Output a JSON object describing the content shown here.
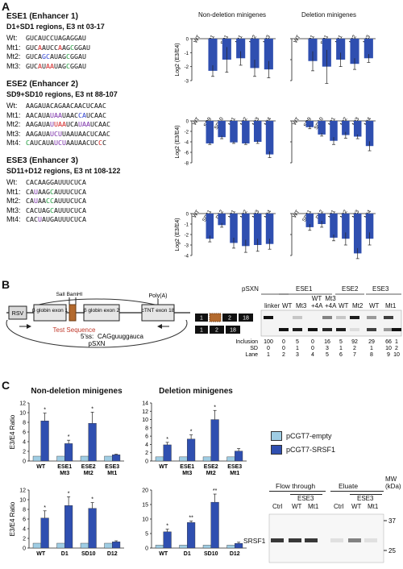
{
  "colors": {
    "dark_bar": "#2f4fb0",
    "light_bar": "#9fcde4",
    "red": "#d12020",
    "blue": "#2b3fd0",
    "green": "#1c9a3a",
    "purple": "#7a2fa8",
    "exon_fill": "#e6e6e6",
    "test_seq": "#b36a2e"
  },
  "panelA": {
    "letter": "A",
    "col_titles": [
      "Non-deletion minigenes",
      "Deletion minigenes"
    ],
    "ylabel": "Log2 (E3/E4)",
    "ese1": {
      "title": "ESE1 (Enhancer 1)",
      "sub": "D1+SD1 regions, E3 nt 03-17",
      "rows": [
        {
          "label": "Wt:",
          "segs": [
            {
              "t": "GUCAUCCUAGAGGAU",
              "c": ""
            }
          ]
        },
        {
          "label": "Mt1:",
          "segs": [
            {
              "t": "GUC",
              "c": ""
            },
            {
              "t": "A",
              "c": "red"
            },
            {
              "t": "AUCC",
              "c": ""
            },
            {
              "t": "A",
              "c": "red"
            },
            {
              "t": "AG",
              "c": ""
            },
            {
              "t": "C",
              "c": "green"
            },
            {
              "t": "GGAU",
              "c": ""
            }
          ]
        },
        {
          "label": "Mt2:",
          "segs": [
            {
              "t": "GUCA",
              "c": ""
            },
            {
              "t": "GC",
              "c": "blue"
            },
            {
              "t": "AUAG",
              "c": ""
            },
            {
              "t": "C",
              "c": "green"
            },
            {
              "t": "GGAU",
              "c": ""
            }
          ]
        },
        {
          "label": "Mt3:",
          "segs": [
            {
              "t": "GUC",
              "c": ""
            },
            {
              "t": "A",
              "c": "red"
            },
            {
              "t": "U",
              "c": ""
            },
            {
              "t": "AA",
              "c": "red"
            },
            {
              "t": "UAG",
              "c": ""
            },
            {
              "t": "C",
              "c": "green"
            },
            {
              "t": "GGAU",
              "c": ""
            }
          ]
        }
      ]
    },
    "ese2": {
      "title": "ESE2 (Enhancer 2)",
      "sub": "SD9+SD10 regions, E3 nt 88-107",
      "rows": [
        {
          "label": "Wt:",
          "segs": [
            {
              "t": "AAGAUACAGAACAACUCAAC",
              "c": ""
            }
          ]
        },
        {
          "label": "Mt1:",
          "segs": [
            {
              "t": "AACAUA",
              "c": ""
            },
            {
              "t": "UAA",
              "c": "purple"
            },
            {
              "t": "UAAC",
              "c": ""
            },
            {
              "t": "CA",
              "c": "blue"
            },
            {
              "t": "UCAAC",
              "c": ""
            }
          ]
        },
        {
          "label": "Mt2:",
          "segs": [
            {
              "t": "AAGAUA",
              "c": ""
            },
            {
              "t": "U",
              "c": "purple"
            },
            {
              "t": "UAA",
              "c": "red"
            },
            {
              "t": "UCA",
              "c": ""
            },
            {
              "t": "UAA",
              "c": "purple"
            },
            {
              "t": "UCAAC",
              "c": ""
            }
          ]
        },
        {
          "label": "Mt3:",
          "segs": [
            {
              "t": "AAGAUA",
              "c": ""
            },
            {
              "t": "UCU",
              "c": "purple"
            },
            {
              "t": "UAAUAACUCAAC",
              "c": ""
            }
          ]
        },
        {
          "label": "Mt4:",
          "segs": [
            {
              "t": "C",
              "c": "green"
            },
            {
              "t": "AUCAUA",
              "c": ""
            },
            {
              "t": "UCU",
              "c": "purple"
            },
            {
              "t": "AAUAACUC",
              "c": ""
            },
            {
              "t": "C",
              "c": "red"
            },
            {
              "t": "C",
              "c": ""
            }
          ]
        }
      ]
    },
    "ese3": {
      "title": "ESE3 (Enhancer 3)",
      "sub": "SD11+D12 regions, E3 nt 108-122",
      "rows": [
        {
          "label": "Wt:",
          "segs": [
            {
              "t": "CACAAGGAUUUCUCA",
              "c": ""
            }
          ]
        },
        {
          "label": "Mt1:",
          "segs": [
            {
              "t": "CA",
              "c": ""
            },
            {
              "t": "U",
              "c": "purple"
            },
            {
              "t": "AAG",
              "c": ""
            },
            {
              "t": "C",
              "c": "green"
            },
            {
              "t": "AUUUCUCA",
              "c": ""
            }
          ]
        },
        {
          "label": "Mt2:",
          "segs": [
            {
              "t": "CA",
              "c": ""
            },
            {
              "t": "U",
              "c": "purple"
            },
            {
              "t": "AA",
              "c": ""
            },
            {
              "t": "CC",
              "c": "green"
            },
            {
              "t": "AUUUCUCA",
              "c": ""
            }
          ]
        },
        {
          "label": "Mt3:",
          "segs": [
            {
              "t": "CACUAG",
              "c": ""
            },
            {
              "t": "C",
              "c": "green"
            },
            {
              "t": "AUUUCUCA",
              "c": ""
            }
          ]
        },
        {
          "label": "Mt4:",
          "segs": [
            {
              "t": "CAC",
              "c": ""
            },
            {
              "t": "U",
              "c": "purple"
            },
            {
              "t": "AUGAUUUCUCA",
              "c": ""
            }
          ]
        }
      ]
    }
  },
  "chart_data": [
    {
      "type": "bar",
      "group": "ESE1",
      "set": "Non-deletion minigenes",
      "categories": [
        "WT",
        "D1",
        "SD1",
        "Mt1",
        "Mt2",
        "Mt3"
      ],
      "values": [
        0,
        -2.3,
        -1.5,
        -1.4,
        -2.1,
        -2.2
      ],
      "errors": [
        0,
        0.4,
        0.9,
        0.5,
        0.6,
        0.6
      ],
      "ylim": [
        -3,
        0
      ],
      "yticks": [
        0,
        -1,
        -2,
        -3
      ],
      "ylabel": "Log2 (E3/E4)"
    },
    {
      "type": "bar",
      "group": "ESE1",
      "set": "Deletion minigenes",
      "categories": [
        "WT",
        "D1",
        "SD1",
        "Mt1",
        "Mt2",
        "Mt3"
      ],
      "values": [
        0,
        -1.6,
        -2.0,
        -1.5,
        -1.8,
        -1.4
      ],
      "errors": [
        0,
        0.7,
        1.2,
        0.5,
        0.4,
        0.3
      ],
      "ylim": [
        -3,
        0
      ]
    },
    {
      "type": "bar",
      "group": "ESE2",
      "set": "Non-deletion minigenes",
      "categories": [
        "WT",
        "SD9",
        "SD10",
        "Mt1",
        "Mt2",
        "Mt3",
        "Mt4"
      ],
      "values": [
        0,
        -4.3,
        -3.1,
        -4.1,
        -4.3,
        -4.0,
        -6.4
      ],
      "errors": [
        0,
        0.2,
        0.3,
        0.2,
        0.2,
        0.3,
        0.6
      ],
      "ylim": [
        -8,
        0
      ],
      "yticks": [
        0,
        -2,
        -4,
        -6,
        -8
      ],
      "ylabel": "Log2 (E3/E4)"
    },
    {
      "type": "bar",
      "group": "ESE2",
      "set": "Deletion minigenes",
      "categories": [
        "WT",
        "SD9",
        "SD10",
        "Mt1",
        "Mt2",
        "Mt3",
        "Mt4"
      ],
      "values": [
        0,
        -1.2,
        -2.6,
        -3.8,
        -2.7,
        -3.0,
        -4.8
      ],
      "errors": [
        0,
        0.3,
        0.3,
        0.7,
        0.6,
        0.4,
        0.9
      ],
      "ylim": [
        -8,
        0
      ]
    },
    {
      "type": "bar",
      "group": "ESE3",
      "set": "Non-deletion minigenes",
      "categories": [
        "WT",
        "SD11",
        "D12",
        "Mt1",
        "Mt2",
        "Mt3",
        "Mt4"
      ],
      "values": [
        0,
        -2.4,
        -1.1,
        -2.8,
        -3.1,
        -3.0,
        -2.9
      ],
      "errors": [
        0,
        0.3,
        0.2,
        0.5,
        0.6,
        0.6,
        0.5
      ],
      "ylim": [
        -4,
        0
      ],
      "yticks": [
        0,
        -1,
        -2,
        -3,
        -4
      ],
      "ylabel": "Log2 (E3/E4)"
    },
    {
      "type": "bar",
      "group": "ESE3",
      "set": "Deletion minigenes",
      "categories": [
        "WT",
        "SD11",
        "D12",
        "Mt1",
        "Mt2",
        "Mt3",
        "Mt4"
      ],
      "values": [
        0,
        -1.3,
        -1.0,
        -2.3,
        -2.4,
        -3.8,
        -2.4
      ],
      "errors": [
        0,
        0.3,
        0.3,
        0.3,
        0.6,
        0.5,
        0.6
      ],
      "ylim": [
        -4,
        0
      ]
    },
    {
      "type": "bar",
      "group": "C1",
      "set": "Non-deletion minigenes",
      "categories": [
        "WT",
        "ESE1 Mt3",
        "ESE2 Mt2",
        "ESE3 Mt1"
      ],
      "series": [
        {
          "name": "pCGT7-empty",
          "values": [
            1,
            1,
            1,
            1
          ]
        },
        {
          "name": "pCGT7-SRSF1",
          "values": [
            8.3,
            3.6,
            7.8,
            1.3
          ]
        }
      ],
      "errors": [
        [
          0,
          0,
          0,
          0
        ],
        [
          1.6,
          0.7,
          2.3,
          0.1
        ]
      ],
      "stars": [
        "*",
        "*",
        "*",
        ""
      ],
      "ylim": [
        0,
        12
      ],
      "yticks": [
        0,
        2,
        4,
        6,
        8,
        10,
        12
      ],
      "ylabel": "E3/E4 Ratio"
    },
    {
      "type": "bar",
      "group": "C2",
      "set": "Deletion minigenes",
      "categories": [
        "WT",
        "ESE1 Mt3",
        "ESE2 Mt2",
        "ESE3 Mt1"
      ],
      "series": [
        {
          "name": "pCGT7-empty",
          "values": [
            1,
            1,
            1,
            1
          ]
        },
        {
          "name": "pCGT7-SRSF1",
          "values": [
            3.9,
            5.3,
            10.0,
            2.4
          ]
        }
      ],
      "errors": [
        [
          0,
          0,
          0,
          0
        ],
        [
          0.6,
          1.0,
          2.2,
          0.6
        ]
      ],
      "stars": [
        "*",
        "*",
        "*",
        ""
      ],
      "ylim": [
        0,
        14
      ],
      "yticks": [
        0,
        2,
        4,
        6,
        8,
        10,
        12,
        14
      ]
    },
    {
      "type": "bar",
      "group": "C3",
      "set": "Non-deletion minigenes",
      "categories": [
        "WT",
        "D1",
        "SD10",
        "D12"
      ],
      "series": [
        {
          "name": "pCGT7-empty",
          "values": [
            1,
            1,
            1,
            1
          ]
        },
        {
          "name": "pCGT7-SRSF1",
          "values": [
            6.2,
            8.8,
            8.2,
            1.3
          ]
        }
      ],
      "errors": [
        [
          0,
          0,
          0,
          0
        ],
        [
          1.5,
          1.8,
          1.2,
          0.2
        ]
      ],
      "stars": [
        "*",
        "*",
        "*",
        ""
      ],
      "ylim": [
        0,
        12
      ],
      "yticks": [
        0,
        2,
        4,
        6,
        8,
        10,
        12
      ],
      "ylabel": "E3/E4 Ratio"
    },
    {
      "type": "bar",
      "group": "C4",
      "set": "Deletion minigenes",
      "categories": [
        "WT",
        "D1",
        "SD10",
        "D12"
      ],
      "series": [
        {
          "name": "pCGT7-empty",
          "values": [
            1,
            1,
            1,
            1
          ]
        },
        {
          "name": "pCGT7-SRSF1",
          "values": [
            5.6,
            8.8,
            15.8,
            1.6
          ]
        }
      ],
      "errors": [
        [
          0,
          0,
          0,
          0
        ],
        [
          0.9,
          0.5,
          2.8,
          0.4
        ]
      ],
      "stars": [
        "*",
        "**",
        "**",
        ""
      ],
      "ylim": [
        0,
        20
      ],
      "yticks": [
        0,
        5,
        10,
        15,
        20
      ]
    }
  ],
  "panelB": {
    "letter": "B",
    "rsv": "RSV",
    "ex1": "β globin exon 1",
    "ex2": "β globin exon 2",
    "ex18": "cTNT exon 18",
    "sites": "SalI BamHI",
    "polya": "Poly(A)",
    "test": "Test Sequence",
    "ss5_prefix": "5'ss:",
    "ss5_seq": "CAGguuggauca",
    "plasmid": "pSXN",
    "gel_groups": [
      {
        "label": "pSXN"
      },
      {
        "label": "ESE1"
      },
      {
        "label": "ESE2"
      },
      {
        "label": "ESE3"
      }
    ],
    "lane_labels": [
      "linker",
      "WT",
      "Mt3",
      "WT +4A",
      "Mt3 +4A",
      "WT",
      "Mt2",
      "WT",
      "Mt1"
    ],
    "row_titles": [
      "Inclusion",
      "SD",
      "Lane"
    ],
    "inclusion": [
      "100",
      "0",
      "5",
      "0",
      "16",
      "5",
      "92",
      "29",
      "66",
      "1"
    ],
    "sd": [
      "0",
      "0",
      "1",
      "0",
      "3",
      "1",
      "2",
      "1",
      "10",
      "2"
    ],
    "lanes": [
      "1",
      "2",
      "3",
      "4",
      "5",
      "6",
      "7",
      "8",
      "9",
      "10"
    ],
    "prod_upper": [
      "1",
      "2",
      "18"
    ],
    "prod_lower": [
      "1",
      "2",
      "18"
    ]
  },
  "panelC": {
    "letter": "C",
    "titles": [
      "Non-deletion minigenes",
      "Deletion minigenes"
    ],
    "legend": [
      "pCGT7-empty",
      "pCGT7-SRSF1"
    ],
    "wb_titles": [
      "Flow through",
      "Eluate"
    ],
    "wb_ese3": "ESE3",
    "wb_lanes": [
      "Ctrl",
      "WT",
      "Mt1",
      "Ctrl",
      "WT",
      "Mt1"
    ],
    "wb_band": "SRSF1",
    "mw_title": "MW (kDa)",
    "mw": [
      "37",
      "25"
    ]
  }
}
